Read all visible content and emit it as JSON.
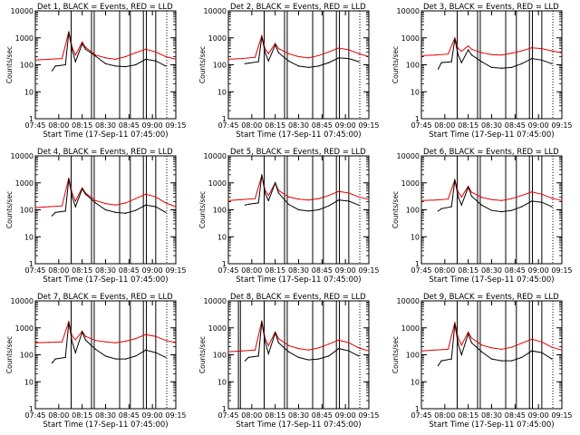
{
  "chart_data": {
    "type": "line",
    "y_scale": "log",
    "ylim": [
      1,
      10000
    ],
    "y_ticks": [
      "1",
      "10",
      "100",
      "1000",
      "10000"
    ],
    "ylabel": "Counts/sec",
    "xlabel": "Start Time (17-Sep-11 07:45:00)",
    "x_ticks": [
      "07:45",
      "08:00",
      "08:15",
      "08:30",
      "08:45",
      "09:00",
      "09:15"
    ],
    "x_range_min": [
      0,
      42
    ],
    "series_colors": {
      "events": "#000000",
      "lld": "#e00000"
    },
    "panels": [
      {
        "title": "Det 1, BLACK = Events, RED = LLD",
        "events": {
          "x": [
            5,
            6,
            9,
            10,
            11,
            12,
            14,
            15,
            18,
            21,
            24,
            27,
            30,
            33,
            36,
            39
          ],
          "y": [
            60,
            90,
            100,
            1600,
            350,
            130,
            600,
            380,
            210,
            110,
            90,
            85,
            100,
            160,
            140,
            90
          ]
        },
        "lld": {
          "x": [
            0,
            4,
            8,
            10,
            11,
            12,
            14,
            15,
            18,
            21,
            24,
            27,
            30,
            33,
            36,
            39,
            42
          ],
          "y": [
            150,
            160,
            170,
            1700,
            450,
            230,
            700,
            450,
            230,
            180,
            160,
            200,
            280,
            380,
            300,
            200,
            160
          ]
        },
        "event_lines": [
          10.7,
          16.8,
          17.6,
          25.2,
          28.4,
          32.3,
          33.2,
          36.0
        ]
      },
      {
        "title": "Det 2, BLACK = Events, RED = LLD",
        "events": {
          "x": [
            5,
            6,
            9,
            10,
            11,
            12,
            14,
            15,
            18,
            21,
            24,
            27,
            30,
            33,
            36,
            39
          ],
          "y": [
            110,
            115,
            130,
            1100,
            280,
            140,
            550,
            280,
            140,
            90,
            80,
            90,
            120,
            180,
            170,
            130
          ]
        },
        "lld": {
          "x": [
            0,
            4,
            8,
            10,
            11,
            12,
            14,
            15,
            18,
            21,
            24,
            27,
            30,
            33,
            36,
            39,
            42
          ],
          "y": [
            160,
            170,
            190,
            1200,
            380,
            260,
            620,
            400,
            260,
            200,
            180,
            220,
            300,
            420,
            360,
            260,
            200
          ]
        },
        "event_lines": [
          10.7,
          16.8,
          17.6,
          25.2,
          28.4,
          32.3,
          33.2,
          36.0
        ]
      },
      {
        "title": "Det 3, BLACK = Events, RED = LLD",
        "events": {
          "x": [
            5,
            6,
            9,
            10,
            11,
            12,
            14,
            15,
            18,
            21,
            24,
            27,
            30,
            33,
            36,
            39
          ],
          "y": [
            70,
            120,
            130,
            900,
            230,
            120,
            360,
            230,
            130,
            80,
            75,
            80,
            110,
            170,
            150,
            110
          ]
        },
        "lld": {
          "x": [
            0,
            4,
            8,
            10,
            11,
            12,
            14,
            15,
            18,
            21,
            24,
            27,
            30,
            33,
            36,
            39,
            42
          ],
          "y": [
            220,
            230,
            250,
            1000,
            400,
            320,
            500,
            380,
            280,
            240,
            230,
            270,
            330,
            430,
            400,
            330,
            280
          ]
        },
        "event_lines": [
          10.7,
          16.8,
          17.6,
          25.2,
          28.4,
          32.3,
          33.2,
          36.0
        ]
      },
      {
        "title": "Det 4, BLACK = Events, RED = LLD",
        "events": {
          "x": [
            5,
            6,
            9,
            10,
            11,
            12,
            14,
            15,
            18,
            21,
            24,
            27,
            30,
            33,
            36,
            39
          ],
          "y": [
            60,
            80,
            90,
            1400,
            300,
            130,
            600,
            380,
            180,
            100,
            80,
            75,
            95,
            150,
            130,
            80
          ]
        },
        "lld": {
          "x": [
            0,
            4,
            8,
            10,
            11,
            12,
            14,
            15,
            18,
            21,
            24,
            27,
            30,
            33,
            36,
            39,
            42
          ],
          "y": [
            120,
            130,
            140,
            1500,
            420,
            210,
            650,
            420,
            220,
            170,
            150,
            180,
            260,
            380,
            300,
            180,
            130
          ]
        },
        "event_lines": [
          10.7,
          16.8,
          17.6,
          25.2,
          28.4,
          32.3,
          33.2,
          36.0
        ]
      },
      {
        "title": "Det 5, BLACK = Events, RED = LLD",
        "events": {
          "x": [
            5,
            6,
            9,
            10,
            11,
            12,
            14,
            15,
            18,
            21,
            24,
            27,
            30,
            33,
            36,
            39
          ],
          "y": [
            150,
            160,
            180,
            2000,
            400,
            220,
            1000,
            420,
            160,
            100,
            90,
            100,
            140,
            230,
            210,
            150
          ]
        },
        "lld": {
          "x": [
            0,
            4,
            8,
            10,
            11,
            12,
            14,
            15,
            18,
            21,
            24,
            27,
            30,
            33,
            36,
            39,
            42
          ],
          "y": [
            220,
            240,
            260,
            1900,
            520,
            340,
            1000,
            520,
            300,
            250,
            230,
            260,
            340,
            480,
            420,
            300,
            240
          ]
        },
        "event_lines": [
          10.7,
          16.8,
          17.6,
          25.2,
          28.4,
          32.3,
          33.2,
          36.0
        ]
      },
      {
        "title": "Det 6, BLACK = Events, RED = LLD",
        "events": {
          "x": [
            5,
            6,
            9,
            10,
            11,
            12,
            14,
            15,
            18,
            21,
            24,
            27,
            30,
            33,
            36,
            39
          ],
          "y": [
            90,
            110,
            130,
            1300,
            300,
            150,
            700,
            320,
            150,
            95,
            85,
            95,
            130,
            210,
            190,
            130
          ]
        },
        "lld": {
          "x": [
            0,
            4,
            8,
            10,
            11,
            12,
            14,
            15,
            18,
            21,
            24,
            27,
            30,
            33,
            36,
            39,
            42
          ],
          "y": [
            220,
            230,
            250,
            1300,
            450,
            300,
            750,
            450,
            290,
            240,
            220,
            260,
            340,
            460,
            380,
            270,
            220
          ]
        },
        "event_lines": [
          10.7,
          16.8,
          17.6,
          25.2,
          28.4,
          32.3,
          33.2,
          36.0
        ]
      },
      {
        "title": "Det 7, BLACK = Events, RED = LLD",
        "events": {
          "x": [
            5,
            6,
            9,
            10,
            11,
            12,
            14,
            15,
            18,
            21,
            24,
            27,
            30,
            33,
            36,
            39
          ],
          "y": [
            50,
            70,
            80,
            1600,
            300,
            120,
            700,
            350,
            160,
            90,
            70,
            70,
            90,
            150,
            120,
            80
          ]
        },
        "lld": {
          "x": [
            0,
            4,
            8,
            10,
            11,
            12,
            14,
            15,
            18,
            21,
            24,
            27,
            30,
            33,
            36,
            39,
            42
          ],
          "y": [
            280,
            290,
            300,
            1700,
            500,
            360,
            750,
            480,
            340,
            300,
            280,
            320,
            400,
            560,
            480,
            340,
            280
          ]
        },
        "event_lines": [
          10.7,
          16.8,
          17.6,
          25.2,
          28.4,
          32.3,
          33.2,
          36.0
        ]
      },
      {
        "title": "Det 8, BLACK = Events, RED = LLD",
        "events": {
          "x": [
            5,
            6,
            9,
            10,
            11,
            12,
            14,
            15,
            18,
            21,
            24,
            27,
            30,
            33,
            36,
            39
          ],
          "y": [
            60,
            80,
            90,
            1700,
            300,
            110,
            650,
            280,
            130,
            80,
            65,
            70,
            90,
            170,
            140,
            90
          ]
        },
        "lld": {
          "x": [
            0,
            4,
            8,
            10,
            11,
            12,
            14,
            15,
            18,
            21,
            24,
            27,
            30,
            33,
            36,
            39,
            42
          ],
          "y": [
            130,
            140,
            150,
            1800,
            400,
            220,
            700,
            400,
            220,
            170,
            150,
            180,
            250,
            350,
            280,
            180,
            140
          ]
        },
        "event_lines": [
          3.0,
          3.6,
          10.7,
          16.8,
          17.6,
          25.2,
          28.4,
          32.3,
          33.2,
          36.0
        ]
      },
      {
        "title": "Det 9, BLACK = Events, RED = LLD",
        "events": {
          "x": [
            5,
            6,
            9,
            10,
            11,
            12,
            14,
            15,
            18,
            21,
            24,
            27,
            30,
            33,
            36,
            39
          ],
          "y": [
            40,
            60,
            70,
            1400,
            250,
            100,
            600,
            280,
            130,
            70,
            60,
            60,
            80,
            140,
            120,
            70
          ]
        },
        "lld": {
          "x": [
            0,
            4,
            8,
            10,
            11,
            12,
            14,
            15,
            18,
            21,
            24,
            27,
            30,
            33,
            36,
            39,
            42
          ],
          "y": [
            140,
            150,
            160,
            1600,
            420,
            230,
            700,
            420,
            230,
            180,
            160,
            190,
            270,
            380,
            300,
            190,
            150
          ]
        },
        "event_lines": [
          10.7,
          16.8,
          17.6,
          25.2,
          28.4,
          32.3,
          33.2,
          36.0
        ]
      }
    ]
  }
}
